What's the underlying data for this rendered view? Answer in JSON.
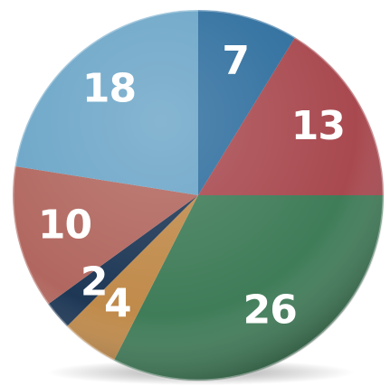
{
  "chart_data": {
    "type": "pie",
    "values": [
      7,
      13,
      26,
      4,
      2,
      10,
      18
    ],
    "colors": [
      "#2e6e9e",
      "#a8494f",
      "#3f7c58",
      "#c08a4a",
      "#1d3755",
      "#b1675f",
      "#6ba5c7"
    ]
  }
}
